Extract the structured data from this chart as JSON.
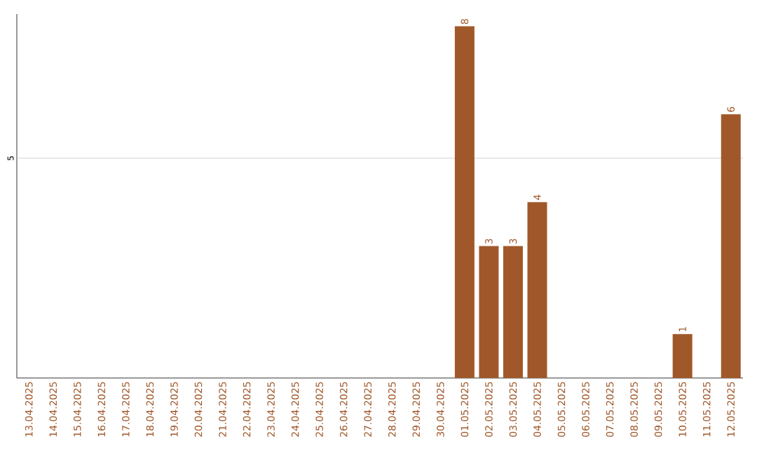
{
  "chart_data": {
    "type": "bar",
    "categories": [
      "13.04.2025",
      "14.04.2025",
      "15.04.2025",
      "16.04.2025",
      "17.04.2025",
      "18.04.2025",
      "19.04.2025",
      "20.04.2025",
      "21.04.2025",
      "22.04.2025",
      "23.04.2025",
      "24.04.2025",
      "25.04.2025",
      "26.04.2025",
      "27.04.2025",
      "28.04.2025",
      "29.04.2025",
      "30.04.2025",
      "01.05.2025",
      "02.05.2025",
      "03.05.2025",
      "04.05.2025",
      "05.05.2025",
      "06.05.2025",
      "07.05.2025",
      "08.05.2025",
      "09.05.2025",
      "10.05.2025",
      "11.05.2025",
      "12.05.2025"
    ],
    "values": [
      null,
      null,
      null,
      null,
      null,
      null,
      null,
      null,
      null,
      null,
      null,
      null,
      null,
      null,
      null,
      null,
      null,
      null,
      8,
      3,
      3,
      4,
      null,
      null,
      null,
      null,
      null,
      1,
      null,
      6
    ],
    "data_labels": true,
    "color": "#a0582a",
    "ref_lines": [
      {
        "axis": "y",
        "value": 5,
        "label": "5",
        "color": "#c8c8c8"
      }
    ]
  }
}
